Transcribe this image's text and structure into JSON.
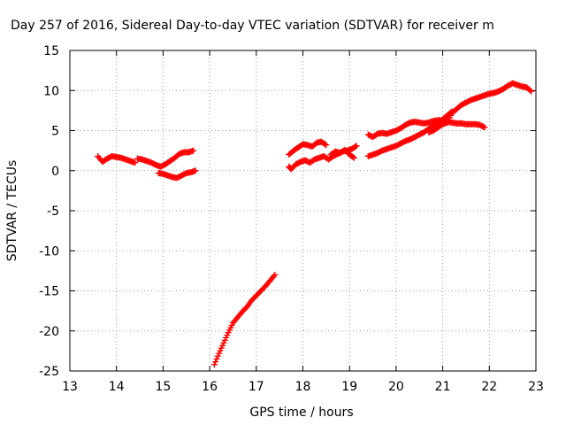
{
  "chart_data": {
    "type": "scatter",
    "title": "Day 257 of 2016, Sidereal Day-to-day VTEC variation (SDTVAR) for receiver m",
    "xlabel": "GPS time / hours",
    "ylabel": "SDTVAR / TECUs",
    "xlim": [
      13,
      23
    ],
    "ylim": [
      -25,
      15
    ],
    "xticks": [
      13,
      14,
      15,
      16,
      17,
      18,
      19,
      20,
      21,
      22,
      23
    ],
    "yticks": [
      -25,
      -20,
      -15,
      -10,
      -5,
      0,
      5,
      10,
      15
    ],
    "grid": true,
    "marker": "+",
    "color": "#ff0000",
    "segments": [
      [
        [
          13.6,
          1.8
        ],
        [
          13.7,
          1.1
        ],
        [
          13.8,
          1.5
        ],
        [
          13.9,
          1.8
        ],
        [
          14.0,
          1.7
        ],
        [
          14.1,
          1.6
        ],
        [
          14.2,
          1.4
        ],
        [
          14.3,
          1.2
        ],
        [
          14.4,
          1.0
        ]
      ],
      [
        [
          14.45,
          1.5
        ],
        [
          14.55,
          1.4
        ],
        [
          14.65,
          1.2
        ],
        [
          14.75,
          1.0
        ],
        [
          14.85,
          0.7
        ],
        [
          14.95,
          0.5
        ],
        [
          15.05,
          0.8
        ],
        [
          15.15,
          1.2
        ],
        [
          15.25,
          1.6
        ],
        [
          15.35,
          2.1
        ],
        [
          15.45,
          2.3
        ],
        [
          15.55,
          2.3
        ],
        [
          15.65,
          2.5
        ]
      ],
      [
        [
          14.9,
          -0.3
        ],
        [
          15.0,
          -0.4
        ],
        [
          15.1,
          -0.6
        ],
        [
          15.2,
          -0.8
        ],
        [
          15.3,
          -0.9
        ],
        [
          15.4,
          -0.6
        ],
        [
          15.5,
          -0.3
        ],
        [
          15.6,
          -0.2
        ],
        [
          15.7,
          0.0
        ]
      ],
      [
        [
          16.1,
          -24.2
        ],
        [
          16.2,
          -22.8
        ],
        [
          16.3,
          -21.5
        ],
        [
          16.4,
          -20.2
        ],
        [
          16.5,
          -19.0
        ],
        [
          16.6,
          -18.3
        ],
        [
          16.7,
          -17.6
        ],
        [
          16.8,
          -17.0
        ],
        [
          16.9,
          -16.2
        ],
        [
          17.0,
          -15.6
        ],
        [
          17.1,
          -15.0
        ],
        [
          17.2,
          -14.4
        ],
        [
          17.3,
          -13.7
        ],
        [
          17.4,
          -13.0
        ]
      ],
      [
        [
          17.7,
          2.0
        ],
        [
          17.8,
          2.5
        ],
        [
          17.9,
          2.9
        ],
        [
          18.0,
          3.3
        ],
        [
          18.1,
          3.2
        ],
        [
          18.2,
          3.0
        ],
        [
          18.3,
          3.5
        ],
        [
          18.4,
          3.6
        ],
        [
          18.5,
          3.2
        ]
      ],
      [
        [
          17.7,
          0.5
        ],
        [
          17.75,
          0.2
        ],
        [
          17.85,
          0.8
        ],
        [
          17.95,
          1.1
        ],
        [
          18.05,
          1.3
        ],
        [
          18.15,
          1.0
        ],
        [
          18.25,
          1.4
        ],
        [
          18.35,
          1.6
        ],
        [
          18.45,
          1.8
        ],
        [
          18.55,
          1.4
        ],
        [
          18.65,
          1.8
        ],
        [
          18.75,
          2.1
        ],
        [
          18.85,
          2.4
        ],
        [
          18.95,
          2.5
        ],
        [
          19.05,
          2.7
        ],
        [
          19.15,
          3.1
        ]
      ],
      [
        [
          18.6,
          2.0
        ],
        [
          18.7,
          2.4
        ],
        [
          18.8,
          2.2
        ],
        [
          18.9,
          2.6
        ],
        [
          19.0,
          2.0
        ],
        [
          19.1,
          1.6
        ]
      ],
      [
        [
          19.4,
          4.5
        ],
        [
          19.5,
          4.2
        ],
        [
          19.6,
          4.6
        ],
        [
          19.7,
          4.7
        ],
        [
          19.8,
          4.6
        ],
        [
          19.9,
          4.8
        ],
        [
          20.0,
          5.0
        ],
        [
          20.1,
          5.3
        ],
        [
          20.2,
          5.7
        ],
        [
          20.3,
          6.0
        ],
        [
          20.4,
          6.1
        ],
        [
          20.5,
          6.0
        ],
        [
          20.6,
          5.9
        ],
        [
          20.7,
          6.0
        ],
        [
          20.8,
          6.2
        ],
        [
          20.9,
          6.3
        ],
        [
          21.0,
          6.2
        ],
        [
          21.1,
          6.1
        ],
        [
          21.2,
          6.0
        ],
        [
          21.3,
          5.9
        ],
        [
          21.4,
          5.9
        ],
        [
          21.5,
          5.8
        ],
        [
          21.6,
          5.8
        ],
        [
          21.7,
          5.8
        ],
        [
          21.8,
          5.7
        ],
        [
          21.9,
          5.4
        ]
      ],
      [
        [
          19.4,
          1.8
        ],
        [
          19.5,
          2.0
        ],
        [
          19.6,
          2.2
        ],
        [
          19.7,
          2.5
        ],
        [
          19.8,
          2.7
        ],
        [
          19.9,
          2.9
        ],
        [
          20.0,
          3.1
        ],
        [
          20.1,
          3.4
        ],
        [
          20.2,
          3.7
        ],
        [
          20.3,
          3.9
        ],
        [
          20.4,
          4.2
        ],
        [
          20.5,
          4.5
        ],
        [
          20.6,
          4.8
        ],
        [
          20.7,
          5.2
        ],
        [
          20.8,
          5.6
        ],
        [
          20.9,
          6.0
        ],
        [
          21.0,
          6.4
        ],
        [
          21.1,
          6.9
        ],
        [
          21.2,
          7.4
        ]
      ],
      [
        [
          20.7,
          4.8
        ],
        [
          20.8,
          5.0
        ],
        [
          20.9,
          5.4
        ],
        [
          21.0,
          5.8
        ],
        [
          21.1,
          6.0
        ],
        [
          21.2,
          7.2
        ],
        [
          21.3,
          7.7
        ],
        [
          21.4,
          8.2
        ],
        [
          21.5,
          8.5
        ],
        [
          21.6,
          8.8
        ],
        [
          21.7,
          9.0
        ],
        [
          21.8,
          9.2
        ],
        [
          21.9,
          9.4
        ],
        [
          22.0,
          9.6
        ],
        [
          22.1,
          9.7
        ],
        [
          22.2,
          9.9
        ],
        [
          22.3,
          10.2
        ],
        [
          22.4,
          10.6
        ],
        [
          22.5,
          10.9
        ],
        [
          22.6,
          10.7
        ],
        [
          22.7,
          10.5
        ],
        [
          22.8,
          10.4
        ],
        [
          22.9,
          9.9
        ]
      ]
    ]
  }
}
